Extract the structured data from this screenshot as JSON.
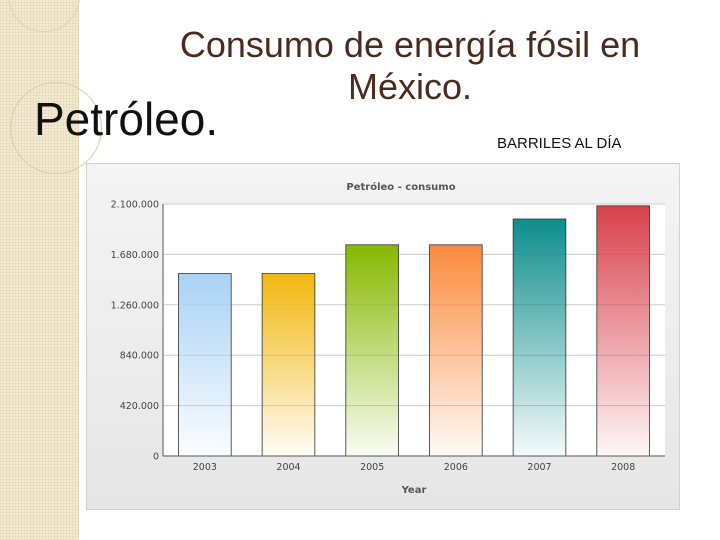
{
  "slide": {
    "title": "Consumo de energía fósil en México.",
    "subtitle": "Petróleo.",
    "unit_note": "BARRILES AL DÍA"
  },
  "colors": {
    "title_text": "#4a2c1f",
    "plot_background": "#ffffff",
    "grid": "#cccccc",
    "axis": "#555555"
  },
  "chart_data": {
    "type": "bar",
    "title": "Petróleo - consumo",
    "xlabel": "Year",
    "ylabel": "",
    "categories": [
      "2003",
      "2004",
      "2005",
      "2006",
      "2007",
      "2008"
    ],
    "values": [
      1520000,
      1520000,
      1760000,
      1760000,
      1975000,
      2085000
    ],
    "ylim": [
      0,
      2100000
    ],
    "yticks": [
      0,
      420000,
      840000,
      1260000,
      1680000,
      2100000
    ],
    "ytick_labels": [
      "0",
      "420.000",
      "840.000",
      "1.260.000",
      "1.680.000",
      "2.100.000"
    ],
    "grid": true,
    "legend": "none",
    "bar_colors": [
      "#a9d2f6",
      "#f2b70f",
      "#86b800",
      "#fb8a3c",
      "#0e8c8c",
      "#d8414c"
    ]
  }
}
